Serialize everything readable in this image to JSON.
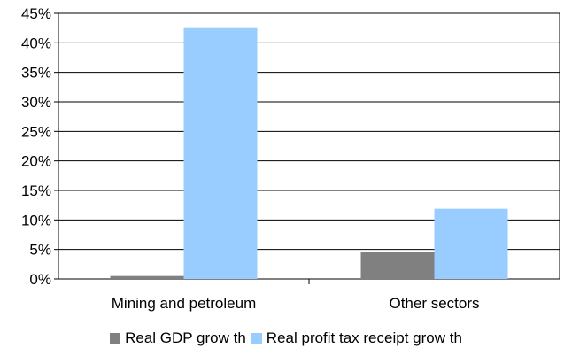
{
  "chart_data": {
    "type": "bar",
    "categories": [
      "Mining and petroleum",
      "Other sectors"
    ],
    "series": [
      {
        "name": "Real GDP grow th",
        "values": [
          0.5,
          4.6
        ],
        "color": "#808080"
      },
      {
        "name": "Real profit tax receipt grow th",
        "values": [
          42.5,
          11.9
        ],
        "color": "#99ccff"
      }
    ],
    "ylim": [
      0,
      45
    ],
    "yticks": [
      "0%",
      "5%",
      "10%",
      "15%",
      "20%",
      "25%",
      "30%",
      "35%",
      "40%",
      "45%"
    ],
    "grid": true,
    "legend_position": "bottom"
  }
}
